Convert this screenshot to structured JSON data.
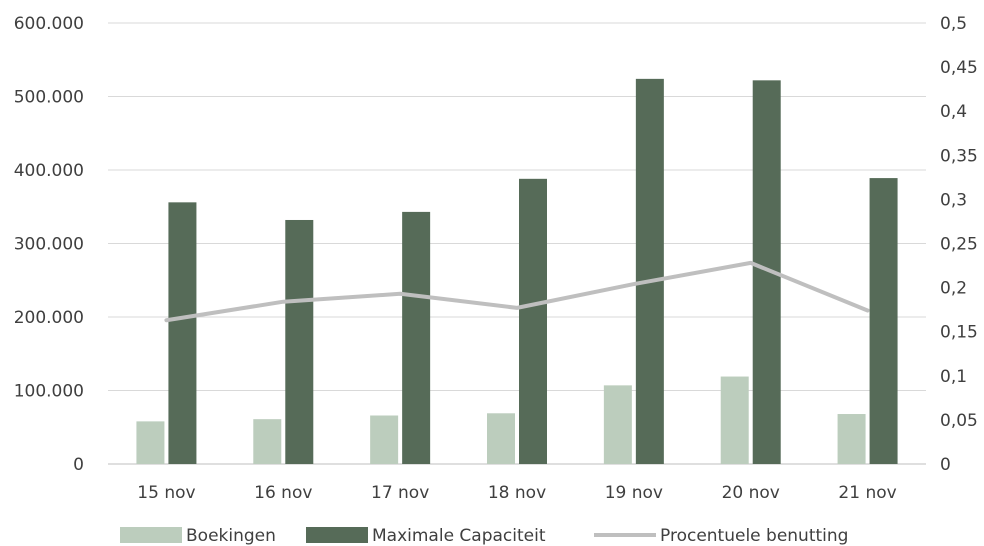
{
  "chart_data": {
    "type": "bar",
    "title": "",
    "xlabel": "",
    "ylabel": "",
    "categories": [
      "15 nov",
      "16 nov",
      "17 nov",
      "18 nov",
      "19 nov",
      "20 nov",
      "21 nov"
    ],
    "ylim": [
      0,
      600000
    ],
    "y2lim": [
      0,
      0.5
    ],
    "y_ticks": [
      "0",
      "100.000",
      "200.000",
      "300.000",
      "400.000",
      "500.000",
      "600.000"
    ],
    "y2_ticks": [
      "0",
      "0,05",
      "0,1",
      "0,15",
      "0,2",
      "0,25",
      "0,3",
      "0,35",
      "0,4",
      "0,45",
      "0,5"
    ],
    "grid": true,
    "legend_position": "bottom",
    "series": [
      {
        "name": "Boekingen",
        "type": "bar",
        "axis": "left",
        "color": "#bccdbd",
        "values": [
          58000,
          61000,
          66000,
          69000,
          107000,
          119000,
          68000
        ]
      },
      {
        "name": "Maximale Capaciteit",
        "type": "bar",
        "axis": "left",
        "color": "#566b58",
        "values": [
          356000,
          332000,
          343000,
          388000,
          524000,
          522000,
          389000
        ]
      },
      {
        "name": "Procentuele benutting",
        "type": "line",
        "axis": "right",
        "color": "#bfbfbf",
        "values": [
          0.163,
          0.184,
          0.193,
          0.177,
          0.204,
          0.228,
          0.174
        ]
      }
    ]
  }
}
